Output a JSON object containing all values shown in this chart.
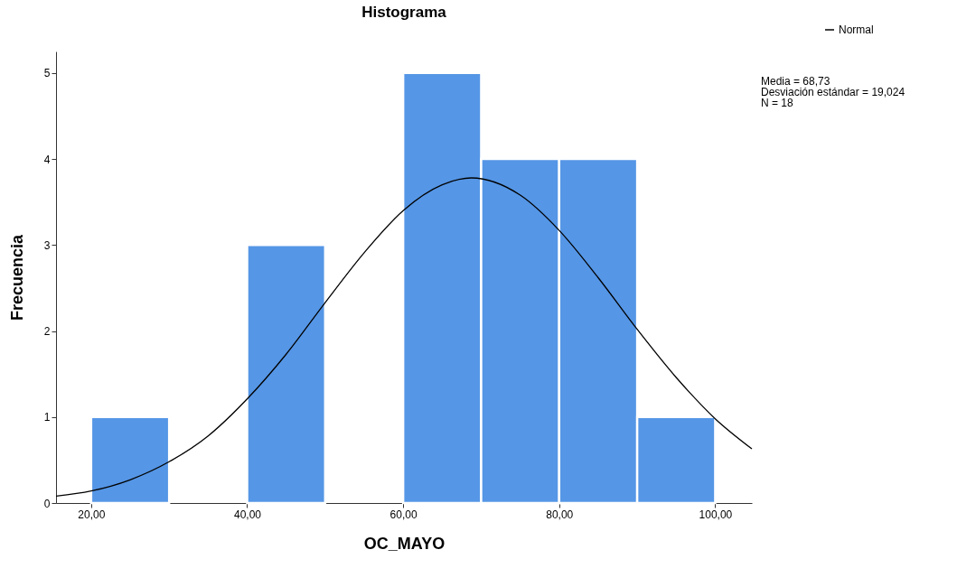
{
  "chart_data": {
    "type": "histogram",
    "title": "Histograma",
    "xlabel": "OC_MAYO",
    "ylabel": "Frecuencia",
    "bins": [
      20,
      30,
      40,
      50,
      60,
      70,
      80,
      90,
      100
    ],
    "values": [
      1,
      0,
      3,
      0,
      5,
      4,
      4,
      1
    ],
    "color": "#5596e6",
    "series": [
      {
        "type": "line",
        "name": "Normal",
        "color": "#000000",
        "x": [
          15.5,
          20,
          25,
          30,
          35,
          40,
          45,
          50,
          55,
          60,
          65,
          68.73,
          75,
          80,
          85,
          90,
          95,
          100,
          104.7
        ],
        "values": [
          0.08,
          0.14,
          0.27,
          0.48,
          0.78,
          1.21,
          1.73,
          2.33,
          2.91,
          3.4,
          3.7,
          3.78,
          3.58,
          3.17,
          2.62,
          2.02,
          1.46,
          0.98,
          0.63
        ]
      }
    ],
    "xlim": [
      15.5,
      104.7
    ],
    "ylim": [
      0,
      5.25
    ],
    "xticks": [
      {
        "value": 20,
        "label": "20,00"
      },
      {
        "value": 40,
        "label": "40,00"
      },
      {
        "value": 60,
        "label": "60,00"
      },
      {
        "value": 80,
        "label": "80,00"
      },
      {
        "value": 100,
        "label": "100,00"
      }
    ],
    "yticks": [
      0,
      1,
      2,
      3,
      4,
      5
    ],
    "grid": false,
    "legend": "top right",
    "marker": "none",
    "line_style": "solid",
    "annotations": [
      "Media = 68,73",
      "Desviación estándar = 19,024",
      "N = 18"
    ]
  }
}
